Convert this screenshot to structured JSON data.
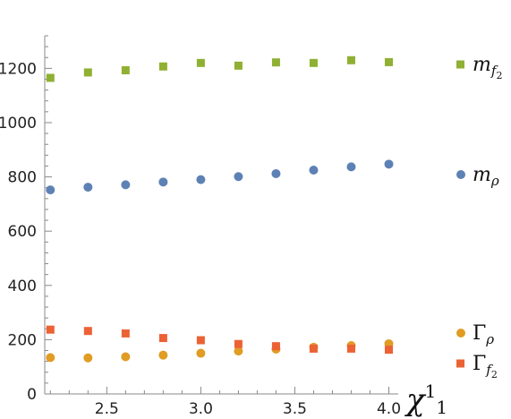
{
  "chart_data": {
    "type": "scatter",
    "title": "",
    "xlabel": "χ¹₁",
    "ylabel": "",
    "xlim": [
      2.17,
      4.05
    ],
    "ylim": [
      0,
      1320
    ],
    "x": [
      2.2,
      2.4,
      2.6,
      2.8,
      3.0,
      3.2,
      3.4,
      3.6,
      3.8,
      4.0
    ],
    "x_ticks": [
      "2.5",
      "3.0",
      "3.5",
      "4.0"
    ],
    "y_ticks": [
      "0",
      "200",
      "400",
      "600",
      "800",
      "1000",
      "1200"
    ],
    "grid": false,
    "legend_placement": "right",
    "series": [
      {
        "name": "m_{f_2}",
        "label_main": "m",
        "label_sub": "f",
        "label_subsub": "2",
        "marker": "square",
        "color": "#8fb032",
        "values": [
          1165,
          1185,
          1193,
          1207,
          1220,
          1210,
          1222,
          1220,
          1230,
          1223
        ]
      },
      {
        "name": "m_ρ",
        "label_main": "m",
        "label_sub": "ρ",
        "label_subsub": "",
        "marker": "circle",
        "color": "#5e81b5",
        "values": [
          752,
          762,
          771,
          781,
          790,
          801,
          812,
          825,
          837,
          847
        ]
      },
      {
        "name": "Γ_ρ",
        "label_main": "Γ",
        "label_sub": "ρ",
        "label_subsub": "",
        "marker": "circle",
        "color": "#e19c24",
        "values": [
          134,
          133,
          137,
          143,
          150,
          158,
          165,
          172,
          178,
          185
        ]
      },
      {
        "name": "Γ_{f_2}",
        "label_main": "Γ",
        "label_sub": "f",
        "label_subsub": "2",
        "marker": "square",
        "color": "#ec6235",
        "values": [
          237,
          232,
          223,
          206,
          198,
          184,
          176,
          167,
          167,
          163
        ]
      }
    ]
  }
}
